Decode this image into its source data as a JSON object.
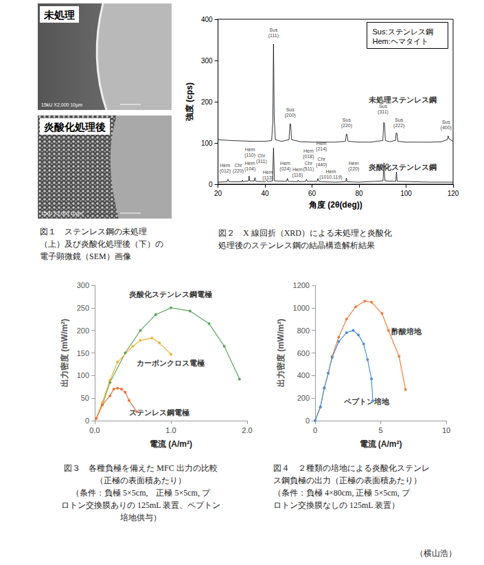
{
  "figure1": {
    "panels": [
      {
        "label": "未処理",
        "scale_text": "15kU  X2,000  10μm"
      },
      {
        "label": "炎酸化処理後",
        "scale_text": "15kU  X2,000  10μm"
      }
    ],
    "caption": [
      "図１　ステンレス鋼の未処理",
      "（上）及び炎酸化処理後（下）の",
      "電子顕微鏡（SEM）画像"
    ]
  },
  "chart_data": [
    {
      "type": "line",
      "x_label": "角度 (2θ(deg))",
      "y_label": "強度 (cps)",
      "xlim": [
        20,
        120
      ],
      "xticks": [
        20,
        40,
        60,
        80,
        100,
        120
      ],
      "ylim": [
        0,
        400
      ],
      "yticks": [
        0,
        100,
        200,
        300,
        400
      ],
      "grid": false,
      "key_text": [
        "Sus:ステンレス鋼",
        "Hem:ヘマタイト"
      ],
      "series": [
        {
          "name": "未処理ステンレス鋼",
          "color": "#000000",
          "label_pos": [
            84,
            205
          ],
          "x": [
            20,
            25,
            30,
            35,
            40,
            42.8,
            43.3,
            43.6,
            43.9,
            44.4,
            47,
            50.2,
            50.6,
            50.9,
            51.3,
            55,
            60,
            65,
            70,
            74.2,
            74.6,
            74.9,
            75.3,
            80,
            85,
            90.1,
            90.5,
            90.8,
            91.2,
            93,
            95.5,
            95.8,
            96.1,
            96.5,
            100,
            105,
            110,
            115,
            117.5,
            117.9,
            118.3,
            120
          ],
          "values": [
            108,
            106,
            105,
            104,
            104,
            106,
            150,
            340,
            160,
            108,
            104,
            108,
            147,
            145,
            108,
            103,
            102,
            102,
            102,
            104,
            122,
            120,
            104,
            102,
            102,
            106,
            150,
            148,
            106,
            103,
            106,
            125,
            123,
            104,
            102,
            102,
            102,
            103,
            108,
            117,
            110,
            104
          ]
        },
        {
          "name": "炎酸化ステンレス鋼",
          "color": "#000000",
          "label_pos": [
            84,
            42
          ],
          "x": [
            20,
            23.8,
            24.2,
            24.6,
            30,
            30.3,
            30.6,
            33,
            33.2,
            33.5,
            35.4,
            35.7,
            36,
            40,
            40.8,
            41.2,
            43.2,
            43.6,
            44,
            49.2,
            49.5,
            49.9,
            53.8,
            54.1,
            54.5,
            57.3,
            57.6,
            58,
            62.2,
            62.5,
            62.9,
            64,
            70,
            74.3,
            74.6,
            74.9,
            80,
            90.2,
            90.6,
            91,
            95.6,
            95.9,
            96.2,
            110,
            120
          ],
          "values": [
            5,
            6,
            12,
            6,
            6,
            10,
            6,
            8,
            20,
            8,
            8,
            16,
            7,
            6,
            10,
            6,
            8,
            88,
            8,
            7,
            14,
            7,
            6,
            10,
            6,
            7,
            12,
            7,
            7,
            14,
            7,
            6,
            5,
            6,
            15,
            6,
            5,
            8,
            52,
            8,
            7,
            30,
            7,
            5,
            5
          ]
        }
      ],
      "annotations": [
        {
          "text": "Sus\n(111)",
          "x": 43.6,
          "y": 368
        },
        {
          "text": "Sus\n(200)",
          "x": 50.7,
          "y": 175
        },
        {
          "text": "Sus\n(220)",
          "x": 74.7,
          "y": 150
        },
        {
          "text": "Sus\n(311)",
          "x": 90.2,
          "y": 182
        },
        {
          "text": "Sus\n(222)",
          "x": 97,
          "y": 150
        },
        {
          "text": "Sus\n(400)",
          "x": 117,
          "y": 145
        },
        {
          "text": "Hem\n(012)",
          "x": 23,
          "y": 40
        },
        {
          "text": "Chr\n(220)",
          "x": 28.6,
          "y": 40
        },
        {
          "text": "Hem\n(104)",
          "x": 33.6,
          "y": 45
        },
        {
          "text": "Hem\n(110)",
          "x": 33.6,
          "y": 78
        },
        {
          "text": "Chr\n(311)",
          "x": 38.5,
          "y": 62
        },
        {
          "text": "Hem\n(113)",
          "x": 41.2,
          "y": 22
        },
        {
          "text": "Hem\n(024)",
          "x": 48.6,
          "y": 45
        },
        {
          "text": "Hem\n(116)",
          "x": 53.8,
          "y": 30
        },
        {
          "text": "Hem\n(018)",
          "x": 58.5,
          "y": 75
        },
        {
          "text": "Chr\n(511)",
          "x": 58.5,
          "y": 45
        },
        {
          "text": "Hem\n(214)",
          "x": 64,
          "y": 92
        },
        {
          "text": "Chr\n(440)",
          "x": 64,
          "y": 54
        },
        {
          "text": "Hem\n(1010,119)",
          "x": 68,
          "y": 24
        },
        {
          "text": "Hem\n(220)",
          "x": 77.7,
          "y": 45
        }
      ],
      "caption": [
        "図２　X 線回折（XRD）による未処理と炎酸化",
        "処理後のステンレス鋼の結晶構造解析結果"
      ]
    },
    {
      "type": "line",
      "x_label": "電流 (A/m²)",
      "y_label": "出力密度 (mW/m²)",
      "xlim": [
        0,
        2
      ],
      "xticks": [
        {
          "value": 0,
          "label": "0.0"
        },
        {
          "value": 1,
          "label": "1.0"
        },
        {
          "value": 2,
          "label": "2.0"
        }
      ],
      "ylim": [
        0,
        300
      ],
      "yticks": [
        0,
        50,
        100,
        150,
        200,
        250,
        300
      ],
      "grid": false,
      "series": [
        {
          "name": "炎酸化ステンレス鋼電極",
          "color": "#5ba85a",
          "marker": "circle",
          "label_pos": [
            0.45,
            280
          ],
          "x": [
            0.02,
            0.1,
            0.2,
            0.4,
            0.6,
            0.8,
            1.0,
            1.25,
            1.5,
            1.7,
            1.9
          ],
          "values": [
            5,
            35,
            85,
            150,
            200,
            235,
            250,
            243,
            215,
            165,
            92
          ]
        },
        {
          "name": "カーボンクロス電極",
          "color": "#f2b134",
          "marker": "circle",
          "label_pos": [
            0.55,
            128
          ],
          "x": [
            0.02,
            0.1,
            0.2,
            0.3,
            0.5,
            0.6,
            0.75,
            0.85,
            1.0
          ],
          "values": [
            5,
            40,
            90,
            130,
            165,
            178,
            183,
            172,
            147
          ]
        },
        {
          "name": "ステンレス鋼電極",
          "color": "#e8733a",
          "marker": "circle",
          "label_pos": [
            0.45,
            18
          ],
          "x": [
            0.02,
            0.1,
            0.2,
            0.25,
            0.3,
            0.35,
            0.4,
            0.45,
            0.55
          ],
          "values": [
            5,
            35,
            55,
            70,
            72,
            70,
            63,
            45,
            20
          ]
        }
      ],
      "caption": [
        "図３　各種負極を備えた MFC 出力の比較",
        "（正極の表面積あたり）",
        "（条件：負極 5×5cm,　正極 5×5cm, プ",
        "ロトン交換膜ありの 125mL 装置、ペプトン",
        "培地供与）"
      ]
    },
    {
      "type": "line",
      "x_label": "電流 (A/m²)",
      "y_label": "出力密度 (mW/m²)",
      "xlim": [
        0,
        10
      ],
      "xticks": [
        0,
        5,
        10
      ],
      "ylim": [
        0,
        1200
      ],
      "yticks": [
        0,
        200,
        400,
        600,
        800,
        1000,
        1200
      ],
      "grid": false,
      "series": [
        {
          "name": "酢酸培地",
          "color": "#f07d3a",
          "marker": "circle",
          "label_pos": [
            5.8,
            790
          ],
          "x": [
            0,
            0.4,
            0.7,
            1.0,
            1.3,
            1.8,
            2.4,
            3.1,
            3.8,
            4.3,
            5.1,
            5.6,
            6.4,
            6.9
          ],
          "values": [
            0,
            120,
            290,
            420,
            570,
            740,
            900,
            1010,
            1060,
            1050,
            950,
            800,
            570,
            275
          ]
        },
        {
          "name": "ペプトン培地",
          "color": "#4a90d9",
          "marker": "circle",
          "label_pos": [
            2.2,
            170
          ],
          "x": [
            0,
            0.4,
            0.7,
            1.0,
            1.3,
            1.8,
            2.4,
            2.9,
            3.3,
            3.7,
            4.0,
            4.3,
            4.4
          ],
          "values": [
            0,
            120,
            290,
            420,
            560,
            700,
            780,
            800,
            760,
            680,
            540,
            370,
            175
          ]
        }
      ],
      "caption": [
        "図４　２種類の培地による炎酸化ステンレ",
        "ス鋼負極の出力（正極の表面積あたり）",
        "（条件：負極 4×80cm, 正極 5×5cm, プ",
        "ロトン交換膜なしの 125mL 装置）"
      ]
    }
  ],
  "author": "（横山浩）"
}
